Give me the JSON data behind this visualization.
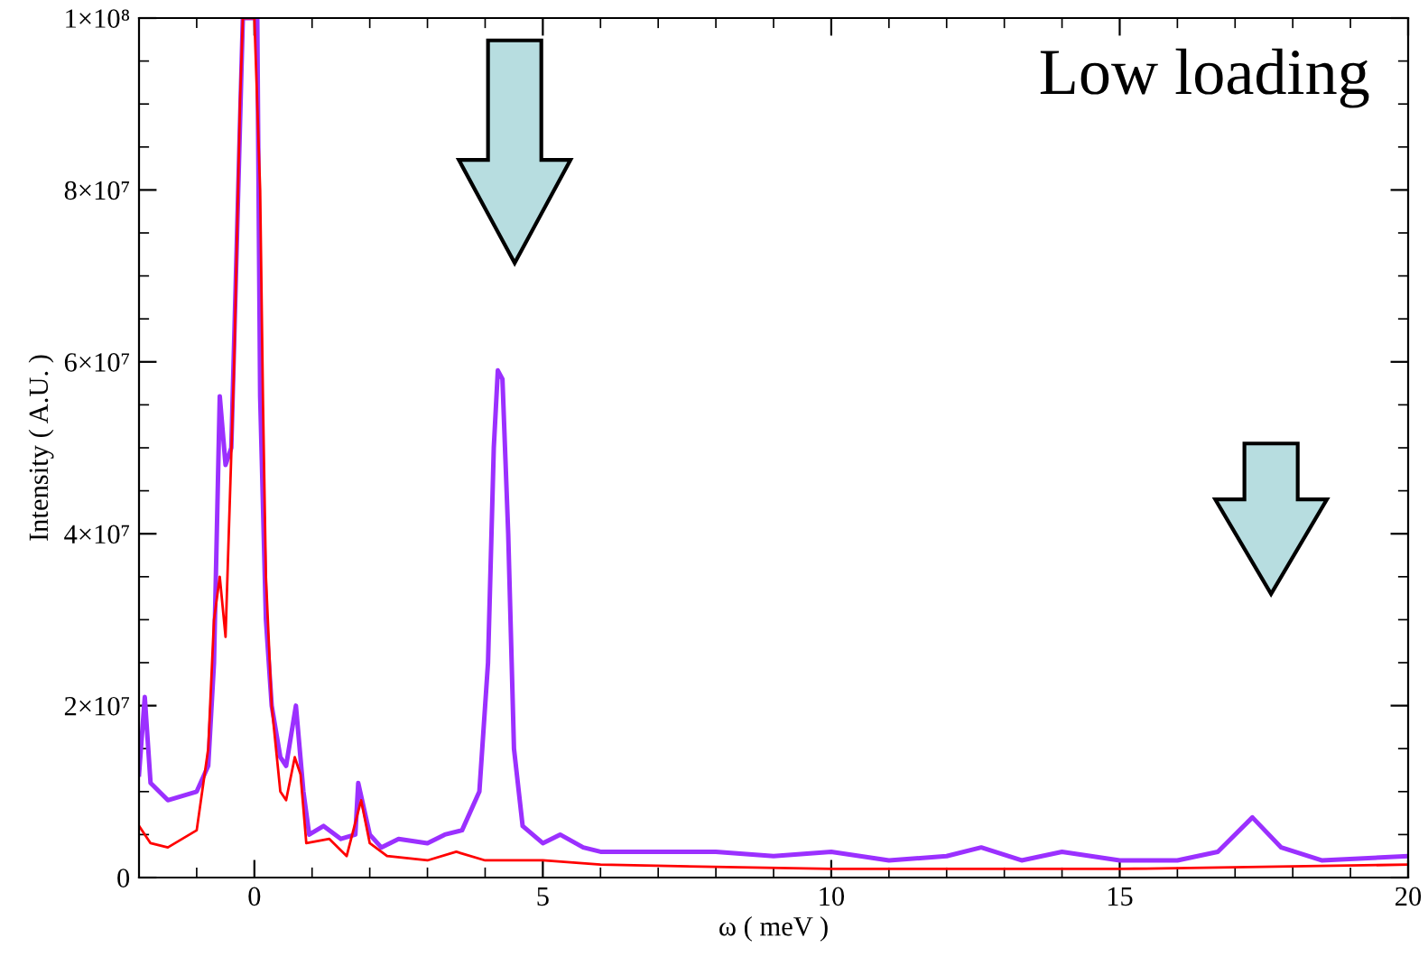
{
  "chart_data": {
    "type": "line",
    "xlabel": "ω ( meV )",
    "ylabel": "Intensity ( A.U. )",
    "annotations": [
      "Low loading"
    ],
    "xlim": [
      -2,
      20
    ],
    "xticks": [
      0,
      5,
      10,
      15,
      20
    ],
    "ylim": [
      0,
      100000000
    ],
    "yticks": [
      {
        "value": 0,
        "label": "0"
      },
      {
        "value": 20000000,
        "label": "2×10⁷"
      },
      {
        "value": 40000000,
        "label": "4×10⁷"
      },
      {
        "value": 60000000,
        "label": "6×10⁷"
      },
      {
        "value": 80000000,
        "label": "8×10⁷"
      },
      {
        "value": 100000000,
        "label": "1×10⁸"
      }
    ],
    "grid": false,
    "legend": false,
    "marker": "none",
    "line_style": "solid",
    "series": [
      {
        "color": "#9b30ff",
        "x": [
          -2,
          -1.9,
          -1.8,
          -1.5,
          -1.0,
          -0.8,
          -0.7,
          -0.6,
          -0.5,
          -0.4,
          -0.3,
          -0.2,
          0.05,
          0.1,
          0.2,
          0.3,
          0.45,
          0.55,
          0.72,
          0.85,
          0.95,
          1.2,
          1.5,
          1.75,
          1.8,
          2.0,
          2.2,
          2.5,
          3.0,
          3.3,
          3.6,
          3.9,
          4.05,
          4.15,
          4.22,
          4.3,
          4.4,
          4.5,
          4.65,
          5.0,
          5.3,
          5.7,
          6,
          8,
          9,
          10,
          11,
          12,
          12.6,
          13.3,
          14,
          15,
          16,
          16.7,
          17.3,
          17.8,
          18.5,
          20
        ],
        "values": [
          12000000,
          21000000,
          11000000,
          9000000,
          10000000,
          13000000,
          25000000,
          56000000,
          48000000,
          50000000,
          75000000,
          100000000,
          100000000,
          56000000,
          30000000,
          20000000,
          14000000,
          13000000,
          20000000,
          10000000,
          5000000,
          6000000,
          4500000,
          5000000,
          11000000,
          5000000,
          3500000,
          4500000,
          4000000,
          5000000,
          5500000,
          10000000,
          25000000,
          50000000,
          59000000,
          58000000,
          40000000,
          15000000,
          6000000,
          4000000,
          5000000,
          3500000,
          3000000,
          3000000,
          2500000,
          3000000,
          2000000,
          2500000,
          3500000,
          2000000,
          3000000,
          2000000,
          2000000,
          3000000,
          7000000,
          3500000,
          2000000,
          2500000
        ]
      },
      {
        "color": "#ff0000",
        "x": [
          -2,
          -1.8,
          -1.5,
          -1.0,
          -0.8,
          -0.7,
          -0.6,
          -0.5,
          -0.35,
          -0.25,
          -0.2,
          0.0,
          0.1,
          0.15,
          0.2,
          0.3,
          0.45,
          0.55,
          0.7,
          0.8,
          0.9,
          1.3,
          1.6,
          1.85,
          2.0,
          2.3,
          3,
          3.5,
          4,
          5,
          6,
          10,
          15,
          20
        ],
        "values": [
          6000000,
          4000000,
          3500000,
          5500000,
          15000000,
          30000000,
          35000000,
          28000000,
          60000000,
          90000000,
          100000000,
          100000000,
          80000000,
          55000000,
          35000000,
          20000000,
          10000000,
          9000000,
          14000000,
          12000000,
          4000000,
          4500000,
          2500000,
          9000000,
          4000000,
          2500000,
          2000000,
          3000000,
          2000000,
          2000000,
          1500000,
          1000000,
          1000000,
          1500000
        ]
      }
    ]
  }
}
